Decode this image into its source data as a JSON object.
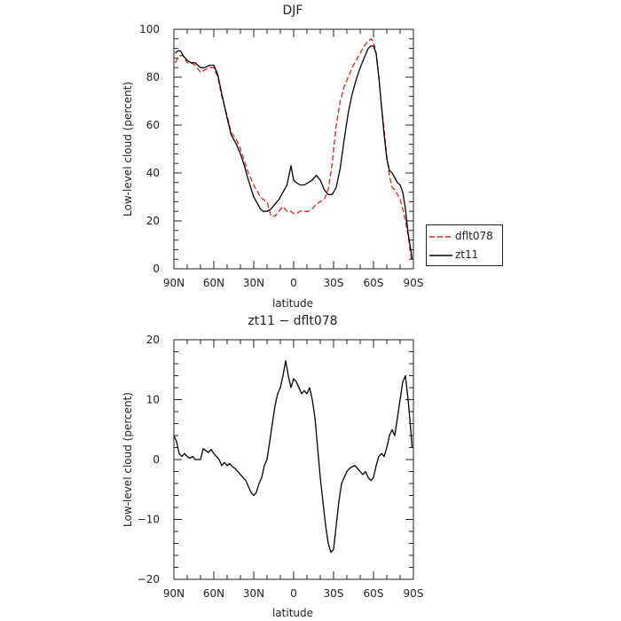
{
  "chart_data": [
    {
      "type": "line",
      "title": "DJF",
      "xlabel": "latitude",
      "ylabel": "Low-level cloud (percent)",
      "x_ticks": [
        "90N",
        "60N",
        "30N",
        "0",
        "30S",
        "60S",
        "90S"
      ],
      "y_ticks": [
        "0",
        "20",
        "40",
        "60",
        "80",
        "100"
      ],
      "xlim": [
        90,
        -90
      ],
      "ylim": [
        0,
        100
      ],
      "legend_position": "right-bottom, outside plot",
      "series": [
        {
          "name": "dflt078",
          "color": "#e02020",
          "style": "dashed",
          "x": [
            89,
            87,
            85,
            83,
            80,
            77,
            74,
            70,
            67,
            63,
            60,
            57,
            54,
            50,
            47,
            43,
            40,
            37,
            34,
            30,
            27,
            25,
            23,
            20,
            17,
            14,
            11,
            8,
            5,
            2,
            0,
            -2,
            -5,
            -8,
            -11,
            -14,
            -17,
            -20,
            -23,
            -26,
            -29,
            -32,
            -35,
            -38,
            -41,
            -44,
            -47,
            -50,
            -53,
            -56,
            -58,
            -60,
            -62,
            -64,
            -66,
            -68,
            -70,
            -72,
            -74,
            -76,
            -78,
            -80,
            -82,
            -84,
            -86,
            -88,
            -89
          ],
          "y": [
            86,
            88,
            89,
            89,
            86,
            86,
            85,
            82,
            83,
            84,
            84,
            80,
            72,
            64,
            57,
            54,
            50,
            45,
            40,
            35,
            32,
            30,
            29,
            28,
            22,
            22,
            24,
            26,
            24,
            24,
            23,
            23,
            24,
            24,
            24,
            25,
            27,
            28,
            29,
            33,
            44,
            60,
            70,
            76,
            80,
            84,
            87,
            90,
            93,
            95,
            96,
            95,
            90,
            80,
            68,
            58,
            47,
            39,
            34,
            33,
            31,
            29,
            25,
            20,
            14,
            6,
            3
          ]
        },
        {
          "name": "zt11",
          "color": "#000000",
          "style": "solid",
          "x": [
            89,
            87,
            85,
            83,
            80,
            77,
            74,
            70,
            67,
            63,
            60,
            57,
            54,
            50,
            47,
            43,
            40,
            37,
            34,
            30,
            27,
            25,
            23,
            20,
            17,
            14,
            11,
            8,
            5,
            2,
            0,
            -2,
            -5,
            -8,
            -11,
            -14,
            -17,
            -20,
            -23,
            -26,
            -29,
            -32,
            -35,
            -38,
            -41,
            -44,
            -47,
            -50,
            -53,
            -56,
            -58,
            -60,
            -62,
            -64,
            -66,
            -68,
            -70,
            -72,
            -74,
            -76,
            -78,
            -80,
            -82,
            -84,
            -86,
            -88,
            -89
          ],
          "y": [
            90,
            91,
            91,
            89,
            87,
            86,
            86,
            84,
            84,
            85,
            85,
            81,
            73,
            63,
            56,
            52,
            48,
            43,
            37,
            30,
            27,
            25,
            24,
            24,
            25,
            27,
            29,
            32,
            35,
            43,
            37,
            36,
            35,
            35,
            36,
            37,
            39,
            37,
            33,
            31,
            31,
            34,
            42,
            54,
            65,
            73,
            79,
            84,
            88,
            92,
            93,
            93,
            90,
            80,
            68,
            56,
            46,
            41,
            40,
            38,
            36,
            35,
            32,
            25,
            15,
            8,
            4
          ]
        }
      ]
    },
    {
      "type": "line",
      "title": "zt11 − dflt078",
      "xlabel": "latitude",
      "ylabel": "Low-level cloud (percent)",
      "x_ticks": [
        "90N",
        "60N",
        "30N",
        "0",
        "30S",
        "60S",
        "90S"
      ],
      "y_ticks": [
        "−20",
        "−10",
        "0",
        "10",
        "20"
      ],
      "xlim": [
        90,
        -90
      ],
      "ylim": [
        -20,
        20
      ],
      "series": [
        {
          "color": "#000000",
          "style": "solid",
          "x": [
            90,
            88,
            86,
            84,
            82,
            80,
            78,
            76,
            74,
            72,
            70,
            68,
            66,
            64,
            62,
            60,
            58,
            56,
            54,
            52,
            50,
            48,
            46,
            44,
            42,
            40,
            38,
            36,
            34,
            32,
            30,
            28,
            26,
            24,
            22,
            20,
            18,
            16,
            14,
            12,
            10,
            8,
            6,
            4,
            2,
            0,
            -2,
            -4,
            -6,
            -8,
            -10,
            -12,
            -14,
            -16,
            -18,
            -20,
            -22,
            -24,
            -26,
            -28,
            -30,
            -32,
            -34,
            -36,
            -38,
            -40,
            -42,
            -44,
            -46,
            -48,
            -50,
            -52,
            -54,
            -56,
            -58,
            -60,
            -62,
            -64,
            -66,
            -68,
            -70,
            -72,
            -74,
            -76,
            -78,
            -80,
            -82,
            -84,
            -86,
            -88,
            -89
          ],
          "y": [
            4,
            3,
            1,
            0.5,
            1,
            0.5,
            0.2,
            0.5,
            0,
            0,
            0,
            1.8,
            1.5,
            1.2,
            1.7,
            1,
            0.5,
            0,
            -1,
            -0.5,
            -1,
            -0.7,
            -1.2,
            -1.5,
            -2,
            -2.5,
            -3,
            -3.5,
            -4.5,
            -5.5,
            -6,
            -5.5,
            -4,
            -3,
            -1,
            0,
            3,
            6,
            9,
            11,
            12,
            14,
            16.5,
            14,
            12,
            13.5,
            13,
            12,
            11,
            11.5,
            11,
            12,
            10,
            7,
            2,
            -3,
            -7,
            -11,
            -14,
            -15.5,
            -15,
            -11,
            -7,
            -4,
            -3,
            -2,
            -1.5,
            -1.2,
            -1,
            -1.5,
            -2,
            -2.5,
            -2,
            -3,
            -3.5,
            -3,
            -1,
            0.5,
            1,
            0.5,
            2,
            4,
            5,
            4,
            7,
            10,
            13,
            14,
            10,
            5,
            2
          ]
        }
      ]
    }
  ]
}
